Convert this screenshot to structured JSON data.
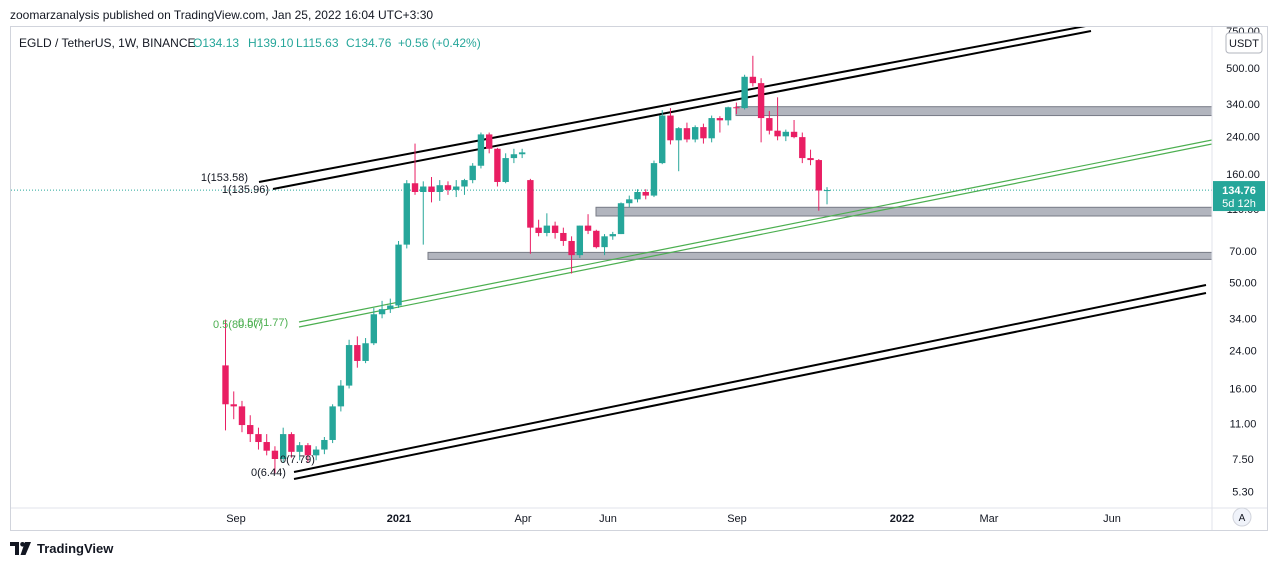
{
  "header": {
    "published_line": "zoomarzanalysis published on TradingView.com, Jan 25, 2022 16:04 UTC+3:30"
  },
  "footer": {
    "brand": "TradingView",
    "logo_icon": "tradingview-logo-icon"
  },
  "colors": {
    "up": "#26a69a",
    "down": "#e91e63",
    "channel": "#000000",
    "fib_line": "#4caf50",
    "zone": "#b2b5be",
    "price_line": "#26a69a"
  },
  "chart_data": {
    "type": "candlestick",
    "legend": {
      "symbol": "EGLD / TetherUS, 1W, BINANCE",
      "open": "O134.13",
      "high": "H139.10",
      "low": "L115.63",
      "close": "C134.76",
      "change": "+0.56 (+0.42%)"
    },
    "y_axis": {
      "scale": "log",
      "unit": "USDT",
      "ticks": [
        "750.00",
        "500.00",
        "340.00",
        "240.00",
        "160.00",
        "110.00",
        "70.00",
        "50.00",
        "34.00",
        "24.00",
        "16.00",
        "11.00",
        "7.50",
        "5.30"
      ]
    },
    "x_axis": {
      "ticks": [
        "Sep",
        "2021",
        "Apr",
        "Jun",
        "Sep",
        "2022",
        "Mar",
        "Jun"
      ]
    },
    "last_price": {
      "value": "134.76",
      "countdown": "5d 12h"
    },
    "annotations": {
      "fib_1_upper": "1(153.58)",
      "fib_1_lower": "1(135.96)",
      "fib_05": "0.5(80.07)",
      "fib_05_alt": "0.5(71.77)",
      "fib_0": "0(6.44)",
      "fib_0_alt": "0(7.79)"
    },
    "candles": [
      {
        "o": 20.5,
        "h": 33.5,
        "l": 10.2,
        "c": 13.5
      },
      {
        "o": 13.5,
        "h": 15.5,
        "l": 11.5,
        "c": 13.2
      },
      {
        "o": 13.2,
        "h": 14.0,
        "l": 10.0,
        "c": 10.8
      },
      {
        "o": 10.8,
        "h": 12.0,
        "l": 9.0,
        "c": 9.8
      },
      {
        "o": 9.8,
        "h": 10.5,
        "l": 8.3,
        "c": 9.0
      },
      {
        "o": 9.0,
        "h": 9.8,
        "l": 7.8,
        "c": 8.2
      },
      {
        "o": 8.2,
        "h": 8.6,
        "l": 6.44,
        "c": 7.5
      },
      {
        "o": 7.5,
        "h": 10.5,
        "l": 7.2,
        "c": 9.8
      },
      {
        "o": 9.8,
        "h": 10.0,
        "l": 7.6,
        "c": 8.1
      },
      {
        "o": 8.1,
        "h": 9.0,
        "l": 7.4,
        "c": 8.7
      },
      {
        "o": 8.7,
        "h": 8.9,
        "l": 7.2,
        "c": 7.8
      },
      {
        "o": 7.8,
        "h": 8.6,
        "l": 7.4,
        "c": 8.3
      },
      {
        "o": 8.3,
        "h": 9.5,
        "l": 7.9,
        "c": 9.2
      },
      {
        "o": 9.2,
        "h": 13.5,
        "l": 8.9,
        "c": 13.2
      },
      {
        "o": 13.2,
        "h": 17.5,
        "l": 12.5,
        "c": 16.5
      },
      {
        "o": 16.5,
        "h": 27.0,
        "l": 16.0,
        "c": 25.5
      },
      {
        "o": 25.5,
        "h": 28.0,
        "l": 20.0,
        "c": 21.5
      },
      {
        "o": 21.5,
        "h": 27.5,
        "l": 21.0,
        "c": 26.0
      },
      {
        "o": 26.0,
        "h": 38.0,
        "l": 25.5,
        "c": 35.5
      },
      {
        "o": 35.5,
        "h": 41.0,
        "l": 34.0,
        "c": 37.5
      },
      {
        "o": 37.5,
        "h": 42.0,
        "l": 36.0,
        "c": 39.0
      },
      {
        "o": 39.0,
        "h": 78.0,
        "l": 38.0,
        "c": 75.0
      },
      {
        "o": 75.0,
        "h": 150.0,
        "l": 72.0,
        "c": 145.0
      },
      {
        "o": 145.0,
        "h": 222.0,
        "l": 128.0,
        "c": 132.0
      },
      {
        "o": 132.0,
        "h": 148.0,
        "l": 75.0,
        "c": 140.0
      },
      {
        "o": 140.0,
        "h": 155.0,
        "l": 118.0,
        "c": 132.0
      },
      {
        "o": 132.0,
        "h": 150.0,
        "l": 120.0,
        "c": 142.0
      },
      {
        "o": 142.0,
        "h": 148.0,
        "l": 128.0,
        "c": 135.0
      },
      {
        "o": 135.0,
        "h": 150.0,
        "l": 125.0,
        "c": 140.0
      },
      {
        "o": 140.0,
        "h": 152.0,
        "l": 128.0,
        "c": 150.0
      },
      {
        "o": 150.0,
        "h": 180.0,
        "l": 145.0,
        "c": 175.0
      },
      {
        "o": 175.0,
        "h": 250.0,
        "l": 170.0,
        "c": 245.0
      },
      {
        "o": 245.0,
        "h": 250.0,
        "l": 200.0,
        "c": 210.0
      },
      {
        "o": 210.0,
        "h": 212.0,
        "l": 140.0,
        "c": 147.0
      },
      {
        "o": 147.0,
        "h": 200.0,
        "l": 145.0,
        "c": 190.0
      },
      {
        "o": 190.0,
        "h": 210.0,
        "l": 180.0,
        "c": 198.0
      },
      {
        "o": 198.0,
        "h": 210.0,
        "l": 190.0,
        "c": 202.0
      },
      {
        "o": 150.0,
        "h": 152.0,
        "l": 68.0,
        "c": 90.0
      },
      {
        "o": 90.0,
        "h": 98.0,
        "l": 82.0,
        "c": 85.0
      },
      {
        "o": 85.0,
        "h": 105.0,
        "l": 82.0,
        "c": 92.0
      },
      {
        "o": 92.0,
        "h": 96.0,
        "l": 80.0,
        "c": 85.0
      },
      {
        "o": 85.0,
        "h": 90.0,
        "l": 74.0,
        "c": 78.0
      },
      {
        "o": 78.0,
        "h": 82.0,
        "l": 55.0,
        "c": 67.0
      },
      {
        "o": 67.0,
        "h": 92.0,
        "l": 65.0,
        "c": 92.0
      },
      {
        "o": 92.0,
        "h": 104.0,
        "l": 84.0,
        "c": 87.0
      },
      {
        "o": 87.0,
        "h": 88.0,
        "l": 72.0,
        "c": 73.0
      },
      {
        "o": 73.0,
        "h": 84.0,
        "l": 67.0,
        "c": 82.0
      },
      {
        "o": 82.0,
        "h": 86.0,
        "l": 79.0,
        "c": 84.0
      },
      {
        "o": 84.0,
        "h": 118.0,
        "l": 84.0,
        "c": 117.0
      },
      {
        "o": 117.0,
        "h": 127.0,
        "l": 112.0,
        "c": 122.0
      },
      {
        "o": 122.0,
        "h": 136.0,
        "l": 118.0,
        "c": 132.0
      },
      {
        "o": 132.0,
        "h": 136.0,
        "l": 122.0,
        "c": 127.0
      },
      {
        "o": 127.0,
        "h": 185.0,
        "l": 125.0,
        "c": 180.0
      },
      {
        "o": 180.0,
        "h": 318.0,
        "l": 178.0,
        "c": 300.0
      },
      {
        "o": 300.0,
        "h": 325.0,
        "l": 220.0,
        "c": 230.0
      },
      {
        "o": 230.0,
        "h": 265.0,
        "l": 165.0,
        "c": 262.0
      },
      {
        "o": 262.0,
        "h": 278.0,
        "l": 225.0,
        "c": 232.0
      },
      {
        "o": 232.0,
        "h": 270.0,
        "l": 225.0,
        "c": 265.0
      },
      {
        "o": 265.0,
        "h": 275.0,
        "l": 222.0,
        "c": 235.0
      },
      {
        "o": 235.0,
        "h": 300.0,
        "l": 225.0,
        "c": 292.0
      },
      {
        "o": 292.0,
        "h": 298.0,
        "l": 250.0,
        "c": 285.0
      },
      {
        "o": 285.0,
        "h": 330.0,
        "l": 270.0,
        "c": 328.0
      },
      {
        "o": 328.0,
        "h": 345.0,
        "l": 305.0,
        "c": 325.0
      },
      {
        "o": 325.0,
        "h": 465.0,
        "l": 320.0,
        "c": 455.0
      },
      {
        "o": 455.0,
        "h": 570.0,
        "l": 410.0,
        "c": 425.0
      },
      {
        "o": 425.0,
        "h": 448.0,
        "l": 225.0,
        "c": 292.0
      },
      {
        "o": 292.0,
        "h": 315.0,
        "l": 245.0,
        "c": 255.0
      },
      {
        "o": 255.0,
        "h": 365.0,
        "l": 230.0,
        "c": 240.0
      },
      {
        "o": 240.0,
        "h": 258.0,
        "l": 228.0,
        "c": 252.0
      },
      {
        "o": 252.0,
        "h": 286.0,
        "l": 235.0,
        "c": 238.0
      },
      {
        "o": 238.0,
        "h": 250.0,
        "l": 180.0,
        "c": 190.0
      },
      {
        "o": 190.0,
        "h": 208.0,
        "l": 176.0,
        "c": 186.0
      },
      {
        "o": 186.0,
        "h": 188.0,
        "l": 108.0,
        "c": 134.13
      },
      {
        "o": 134.13,
        "h": 139.1,
        "l": 115.63,
        "c": 134.76
      }
    ]
  }
}
